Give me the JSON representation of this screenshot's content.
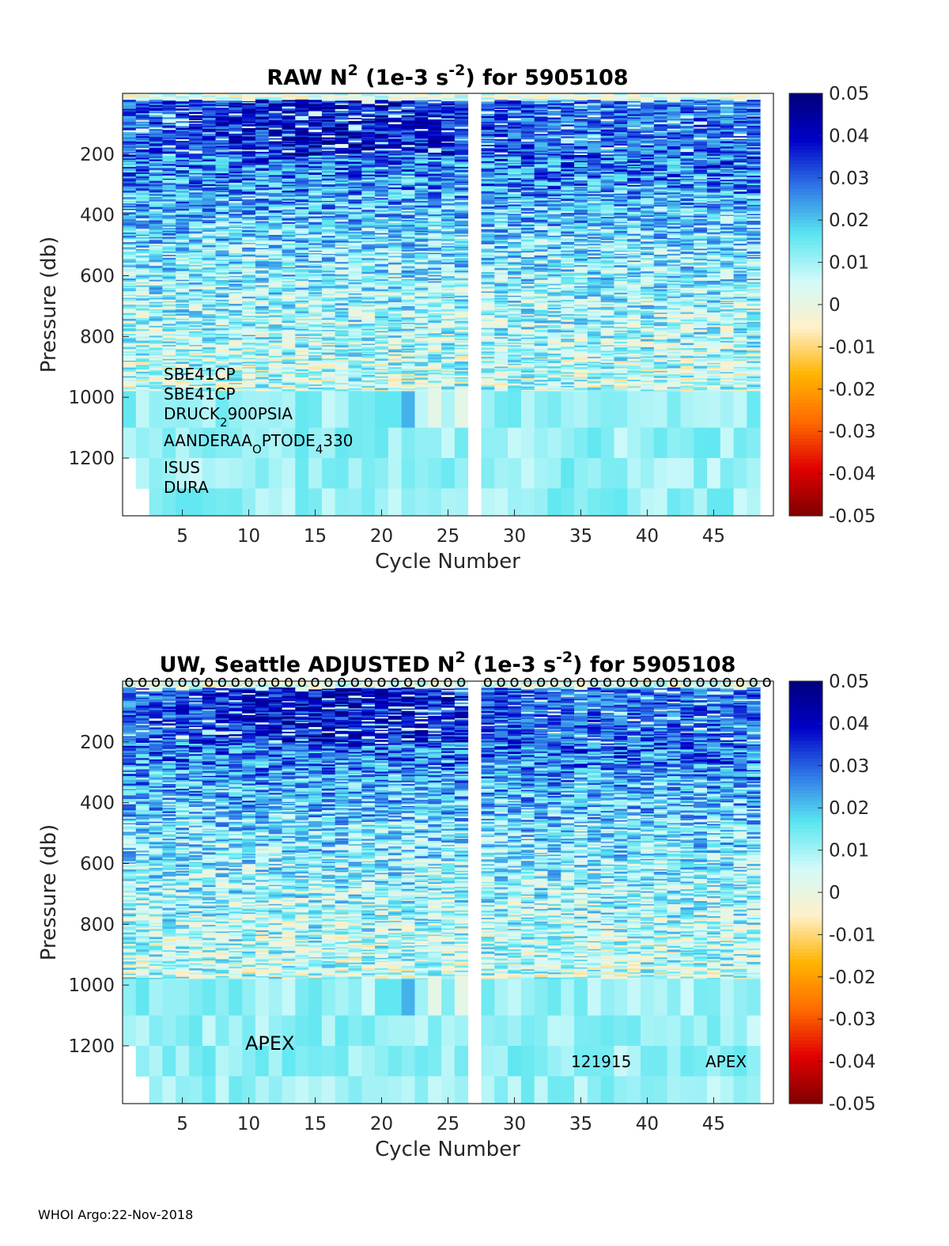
{
  "footer": "WHOI Argo:22-Nov-2018",
  "colors": {
    "colormap": [
      "#7f0000",
      "#e00000",
      "#ff6a00",
      "#ffb400",
      "#fff0c8",
      "#d2fafa",
      "#5ae6f0",
      "#2f78e6",
      "#0000c8",
      "#00007a"
    ]
  },
  "chart_data": [
    {
      "type": "heatmap",
      "id": "raw",
      "title_parts": [
        "RAW N",
        "2",
        " (1e-3 s",
        "-2",
        ") for 5905108"
      ],
      "title": "RAW N2 (1e-3 s-2) for 5905108",
      "xlabel": "Cycle Number",
      "ylabel": "Pressure (db)",
      "xlim": [
        1,
        49
      ],
      "ylim": [
        1390,
        0
      ],
      "xticks": [
        5,
        10,
        15,
        20,
        25,
        30,
        35,
        40,
        45
      ],
      "yticks": [
        200,
        400,
        600,
        800,
        1000,
        1200
      ],
      "colorbar": {
        "clim": [
          -0.05,
          0.05
        ],
        "ticks": [
          "0.05",
          "0.04",
          "0.03",
          "0.02",
          "0.01",
          "0",
          "-0.01",
          "-0.02",
          "-0.03",
          "-0.04",
          "-0.05"
        ]
      },
      "missing_cycles": [
        27
      ],
      "shallow_only_cycles": [
        1,
        2
      ],
      "annotations": [
        {
          "parts": [
            "SBE41CP"
          ]
        },
        {
          "parts": [
            "SBE41CP"
          ]
        },
        {
          "parts": [
            "DRUCK",
            "2",
            "900PSIA"
          ]
        },
        {
          "parts": [
            "AANDERAA",
            "O",
            "PTODE",
            "4",
            "330"
          ]
        },
        {
          "parts": [
            "ISUS"
          ]
        },
        {
          "parts": [
            "DURA"
          ]
        }
      ]
    },
    {
      "type": "heatmap",
      "id": "adj",
      "title_parts": [
        "UW, Seattle  ADJUSTED N",
        "2",
        " (1e-3 s",
        "-2",
        ") for 5905108"
      ],
      "title": "UW, Seattle  ADJUSTED N2 (1e-3 s-2) for 5905108",
      "xlabel": "Cycle Number",
      "ylabel": "Pressure (db)",
      "xlim": [
        1,
        49
      ],
      "ylim": [
        1390,
        0
      ],
      "xticks": [
        5,
        10,
        15,
        20,
        25,
        30,
        35,
        40,
        45
      ],
      "yticks": [
        200,
        400,
        600,
        800,
        1000,
        1200
      ],
      "colorbar": {
        "clim": [
          -0.05,
          0.05
        ],
        "ticks": [
          "0.05",
          "0.04",
          "0.03",
          "0.02",
          "0.01",
          "0",
          "-0.01",
          "-0.02",
          "-0.03",
          "-0.04",
          "-0.05"
        ]
      },
      "missing_cycles": [
        27
      ],
      "shallow_only_cycles": [
        1,
        2
      ],
      "top_markers": "o",
      "annotations": [
        {
          "parts": [
            "APEX"
          ]
        },
        {
          "parts": [
            "121915"
          ]
        },
        {
          "parts": [
            "APEX"
          ]
        }
      ]
    }
  ]
}
